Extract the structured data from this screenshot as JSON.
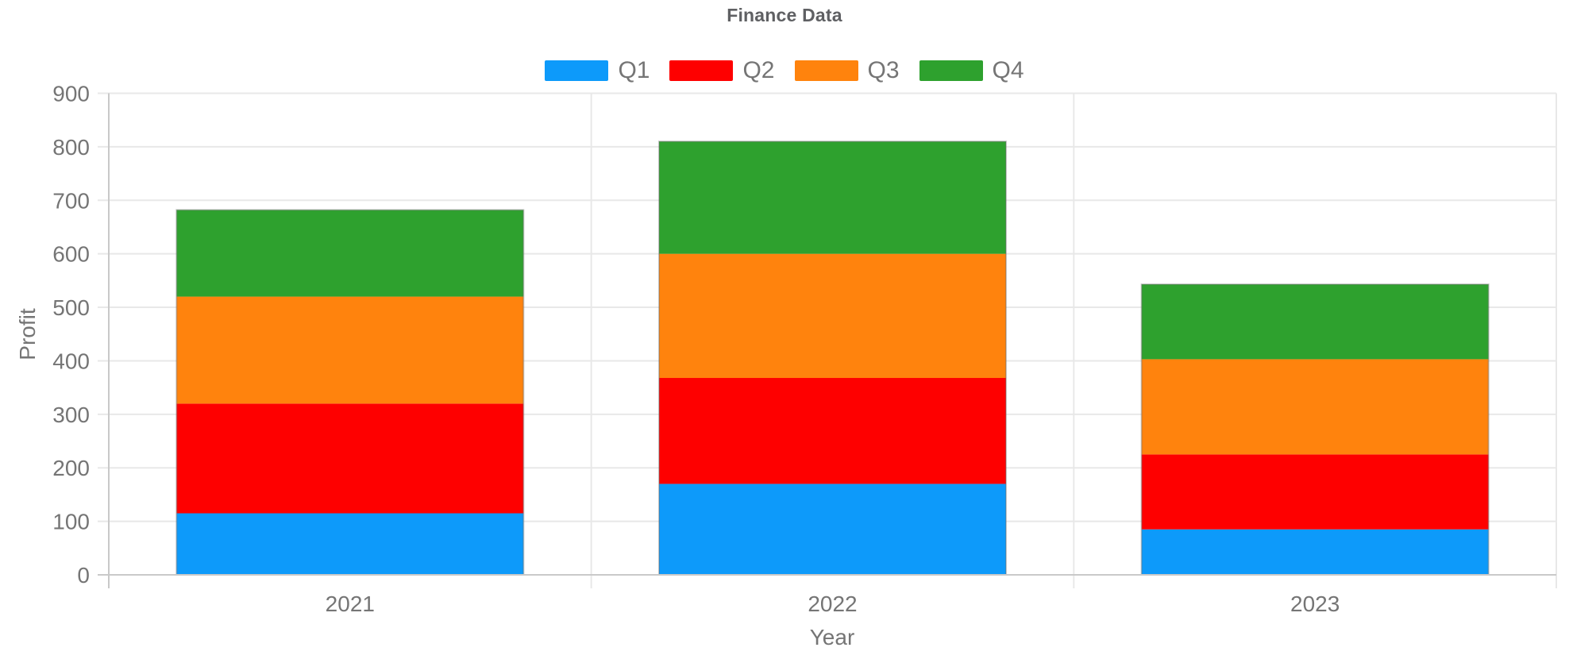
{
  "header": {
    "title": "Finance Data"
  },
  "chart_data": {
    "type": "bar",
    "stacked": true,
    "title": "Finance Data",
    "xlabel": "Year",
    "ylabel": "Profit",
    "categories": [
      "2021",
      "2022",
      "2023"
    ],
    "series": [
      {
        "name": "Q1",
        "color": "#0D9AFA",
        "values": [
          115,
          170,
          85
        ]
      },
      {
        "name": "Q2",
        "color": "#FE0000",
        "values": [
          205,
          198,
          140
        ]
      },
      {
        "name": "Q3",
        "color": "#FF830D",
        "values": [
          200,
          232,
          178
        ]
      },
      {
        "name": "Q4",
        "color": "#2EA12E",
        "values": [
          162,
          210,
          140
        ]
      }
    ],
    "totals": [
      682,
      810,
      543
    ],
    "ylim": [
      0,
      900
    ],
    "ytick_step": 100,
    "yticks": [
      0,
      100,
      200,
      300,
      400,
      500,
      600,
      700,
      800,
      900
    ],
    "grid": true,
    "legend_position": "top",
    "colors": {
      "grid_line": "#E8E8E8",
      "axis_line": "#C9C9C9",
      "tick_text": "#757575",
      "title_text": "#5F6063"
    }
  }
}
